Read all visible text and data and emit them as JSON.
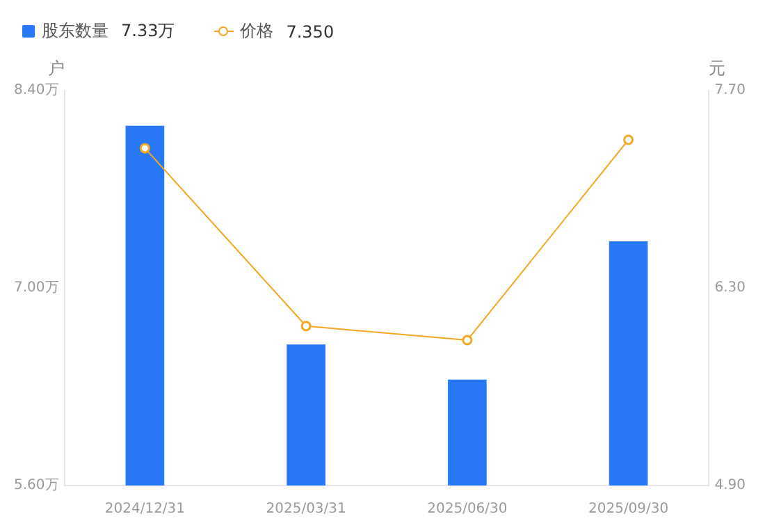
{
  "chart_data": {
    "type": "bar",
    "categories": [
      "2024/12/31",
      "2025/03/31",
      "2025/06/30",
      "2025/09/30"
    ],
    "series": [
      {
        "name": "股东数量",
        "color": "#2878f6",
        "values": [
          8.15,
          6.6,
          6.35,
          7.33
        ]
      },
      {
        "name": "价格",
        "type": "line",
        "axis": "y2",
        "color": "#f5a623",
        "values": [
          7.29,
          6.03,
          5.93,
          7.35
        ]
      }
    ],
    "annotations": [
      "7.33万",
      "7.350"
    ],
    "ylabel": "户",
    "y2label": "元",
    "ylim": [
      5.6,
      8.4
    ],
    "yticks": [
      {
        "value": 5.6,
        "label": "5.60万"
      },
      {
        "value": 7.0,
        "label": "7.00万"
      },
      {
        "value": 8.4,
        "label": "8.40万"
      }
    ],
    "y2lim": [
      4.9,
      7.7
    ],
    "y2ticks": [
      {
        "value": 4.9,
        "label": "4.90"
      },
      {
        "value": 6.3,
        "label": "6.30"
      },
      {
        "value": 7.7,
        "label": "7.70"
      }
    ],
    "legend": "top left",
    "marker": "circle",
    "line_style": "solid",
    "grid": false
  }
}
